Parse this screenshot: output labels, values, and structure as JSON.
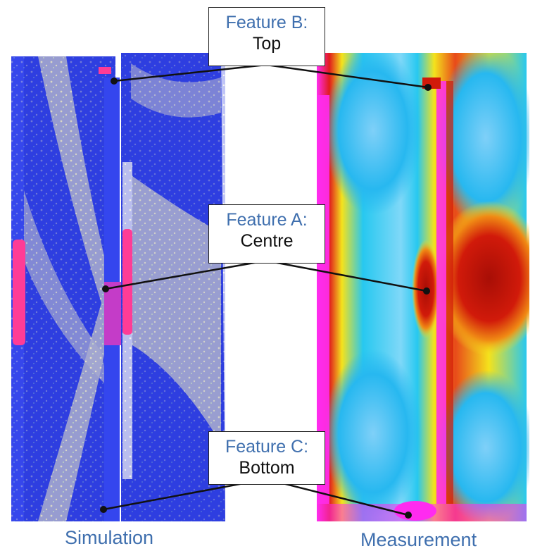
{
  "features": [
    {
      "id": "B",
      "title": "Feature B:",
      "subtitle": "Top"
    },
    {
      "id": "A",
      "title": "Feature A:",
      "subtitle": "Centre"
    },
    {
      "id": "C",
      "title": "Feature C:",
      "subtitle": "Bottom"
    }
  ],
  "captions": {
    "left": "Simulation",
    "right": "Measurement"
  },
  "colors": {
    "caption_blue": "#3f6fae",
    "sim_blue": "#2e3ee0",
    "sim_cream": "#e8e4c8",
    "sim_magenta": "#ff3c96",
    "meas_cyan": "#27c8f0",
    "meas_red": "#d11a0a",
    "meas_magenta": "#ff2cf0"
  }
}
